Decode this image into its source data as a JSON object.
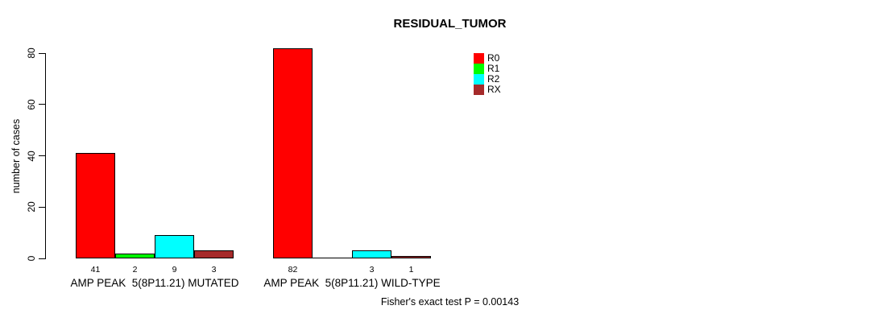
{
  "title": "RESIDUAL_TUMOR",
  "footer": "Fisher's exact test P = 0.00143",
  "chart_data": {
    "type": "bar",
    "title": "RESIDUAL_TUMOR",
    "xlabel": "",
    "ylabel": "number of cases",
    "ylim": [
      0,
      80
    ],
    "yticks": [
      0,
      20,
      40,
      60,
      80
    ],
    "grid": false,
    "legend_position": "top-right",
    "categories": [
      "AMP PEAK  5(8P11.21) MUTATED",
      "AMP PEAK  5(8P11.21) WILD-TYPE"
    ],
    "series": [
      {
        "name": "R0",
        "color": "#FF0000",
        "values": [
          41,
          82
        ]
      },
      {
        "name": "R1",
        "color": "#00FF00",
        "values": [
          2,
          0
        ]
      },
      {
        "name": "R2",
        "color": "#00FFFF",
        "values": [
          9,
          3
        ]
      },
      {
        "name": "RX",
        "color": "#A52A2A",
        "values": [
          3,
          1
        ]
      }
    ],
    "bar_value_labels": {
      "shown": true,
      "zero_values_unlabeled": true
    },
    "annotation": "Fisher's exact test P = 0.00143"
  }
}
